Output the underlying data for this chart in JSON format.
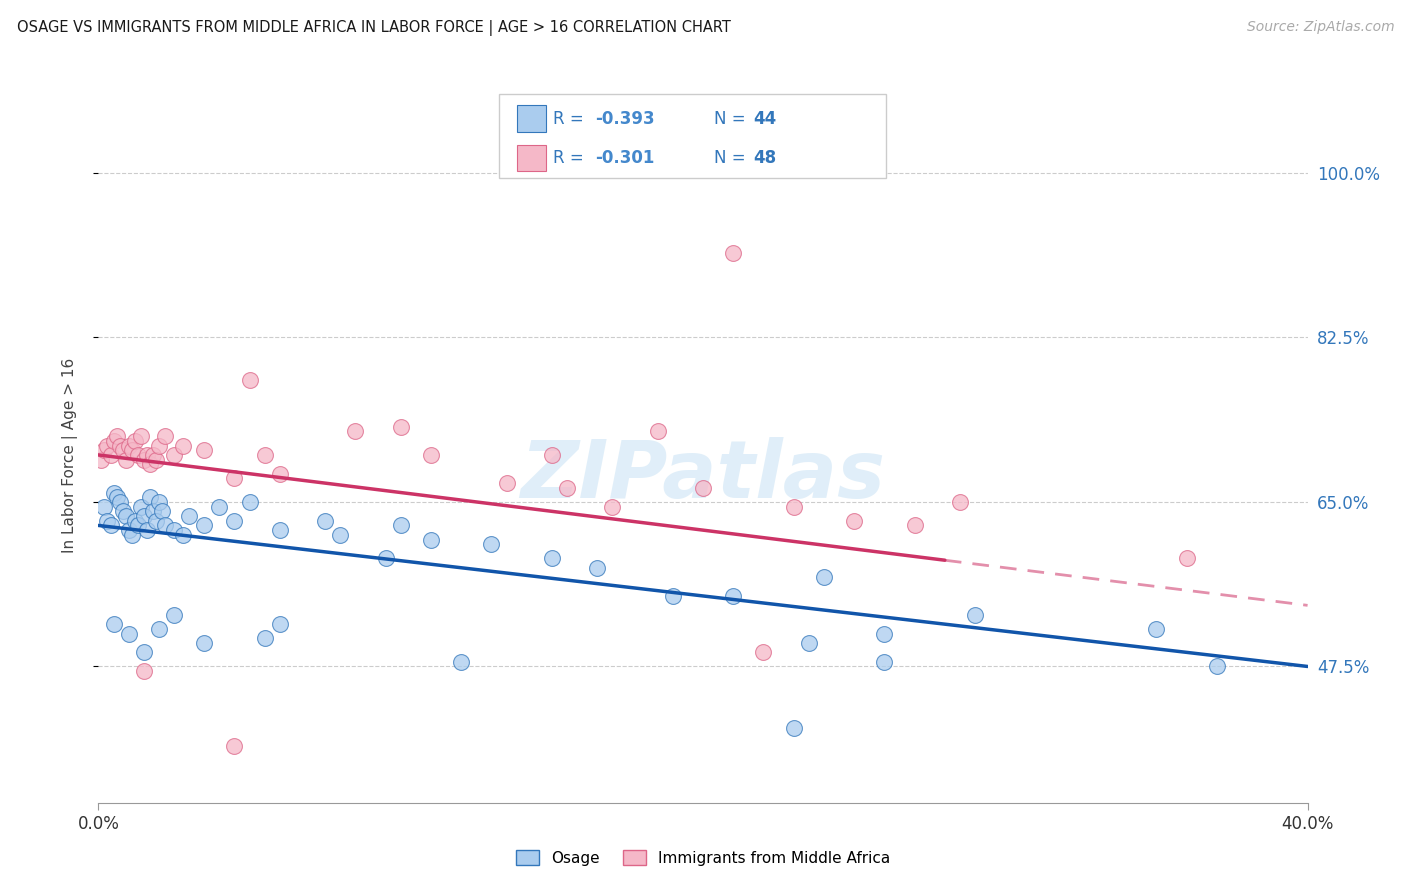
{
  "title": "OSAGE VS IMMIGRANTS FROM MIDDLE AFRICA IN LABOR FORCE | AGE > 16 CORRELATION CHART",
  "source": "Source: ZipAtlas.com",
  "ylabel": "In Labor Force | Age > 16",
  "yticks": [
    47.5,
    65.0,
    82.5,
    100.0
  ],
  "ytick_labels": [
    "47.5%",
    "65.0%",
    "82.5%",
    "100.0%"
  ],
  "xmin": 0.0,
  "xmax": 40.0,
  "ymin": 33.0,
  "ymax": 107.0,
  "legend_label1": "Osage",
  "legend_label2": "Immigrants from Middle Africa",
  "R1": "-0.393",
  "N1": "44",
  "R2": "-0.301",
  "N2": "48",
  "color_blue_fill": "#aaccee",
  "color_pink_fill": "#f5b8c8",
  "color_blue_edge": "#3377bb",
  "color_pink_edge": "#dd6688",
  "color_blue_line": "#1155aa",
  "color_pink_line": "#cc3366",
  "color_legend_text": "#3377bb",
  "color_rvalue": "#5599dd",
  "watermark_color": "#cce4f5",
  "osage_x": [
    0.2,
    0.3,
    0.4,
    0.5,
    0.6,
    0.7,
    0.8,
    0.9,
    1.0,
    1.1,
    1.2,
    1.3,
    1.4,
    1.5,
    1.6,
    1.7,
    1.8,
    1.9,
    2.0,
    2.1,
    2.2,
    2.5,
    2.8,
    3.0,
    3.5,
    4.0,
    4.5,
    5.0,
    6.0,
    7.5,
    8.0,
    9.5,
    10.0,
    11.0,
    13.0,
    15.0,
    16.5,
    19.0,
    21.0,
    24.0,
    26.0,
    29.0,
    35.0,
    37.0
  ],
  "osage_y": [
    64.5,
    63.0,
    62.5,
    66.0,
    65.5,
    65.0,
    64.0,
    63.5,
    62.0,
    61.5,
    63.0,
    62.5,
    64.5,
    63.5,
    62.0,
    65.5,
    64.0,
    63.0,
    65.0,
    64.0,
    62.5,
    62.0,
    61.5,
    63.5,
    62.5,
    64.5,
    63.0,
    65.0,
    62.0,
    63.0,
    61.5,
    59.0,
    62.5,
    61.0,
    60.5,
    59.0,
    58.0,
    55.0,
    55.0,
    57.0,
    51.0,
    53.0,
    51.5,
    47.5
  ],
  "osage_y_low": [
    52.0,
    51.0,
    49.0,
    51.5,
    53.0,
    50.0,
    50.5,
    52.0,
    48.0,
    41.0,
    50.0,
    48.0
  ],
  "osage_x_low": [
    0.5,
    1.0,
    1.5,
    2.0,
    2.5,
    3.5,
    5.5,
    6.0,
    12.0,
    23.0,
    23.5,
    26.0
  ],
  "pink_x": [
    0.1,
    0.2,
    0.3,
    0.4,
    0.5,
    0.6,
    0.7,
    0.8,
    0.9,
    1.0,
    1.1,
    1.2,
    1.3,
    1.4,
    1.5,
    1.6,
    1.7,
    1.8,
    1.9,
    2.0,
    2.2,
    2.5,
    2.8,
    3.5,
    4.5,
    5.5,
    6.0,
    8.5,
    11.0,
    13.5,
    15.5,
    17.0,
    20.0,
    23.0,
    25.0,
    27.0,
    28.5,
    36.0
  ],
  "pink_y": [
    69.5,
    70.5,
    71.0,
    70.0,
    71.5,
    72.0,
    71.0,
    70.5,
    69.5,
    71.0,
    70.5,
    71.5,
    70.0,
    72.0,
    69.5,
    70.0,
    69.0,
    70.0,
    69.5,
    71.0,
    72.0,
    70.0,
    71.0,
    70.5,
    67.5,
    70.0,
    68.0,
    72.5,
    70.0,
    67.0,
    66.5,
    64.5,
    66.5,
    64.5,
    63.0,
    62.5,
    65.0,
    59.0
  ],
  "pink_x_outliers": [
    5.0,
    10.0,
    15.0,
    18.5,
    22.0,
    1.5,
    4.5,
    21.0
  ],
  "pink_y_outliers": [
    78.0,
    73.0,
    70.0,
    72.5,
    49.0,
    47.0,
    39.0,
    91.5
  ],
  "blue_line_x0": 0.0,
  "blue_line_y0": 62.5,
  "blue_line_x1": 40.0,
  "blue_line_y1": 47.5,
  "pink_line_x0": 0.0,
  "pink_line_y0": 70.0,
  "pink_line_x1": 40.0,
  "pink_line_y1": 54.0,
  "pink_dash_start": 28.0
}
